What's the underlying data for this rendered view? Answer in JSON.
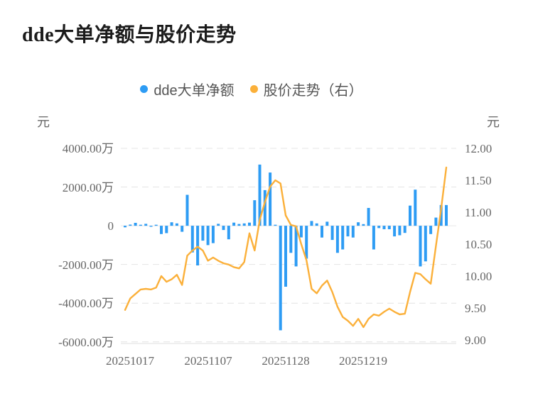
{
  "title": "dde大单净额与股价走势",
  "legend": {
    "series1": "dde大单净额",
    "series2": "股价走势（右）"
  },
  "left_axis": {
    "unit": "元",
    "ticks": [
      "4000.00万",
      "2000.00万",
      "0",
      "-2000.00万",
      "-4000.00万",
      "-6000.00万"
    ]
  },
  "right_axis": {
    "unit": "元",
    "ticks": [
      "12.00",
      "11.50",
      "11.00",
      "10.50",
      "10.00",
      "9.50",
      "9.00"
    ]
  },
  "x_axis": {
    "labels": [
      "20251017",
      "20251107",
      "20251128",
      "20251219"
    ],
    "label_bar_indices": [
      1,
      16,
      31,
      46
    ]
  },
  "colors": {
    "bar": "#2E9CF4",
    "line": "#FBB03A",
    "grid": "#E4E4E4",
    "zero_line": "#E7E7E7",
    "axis_line": "#EAEAEA",
    "tick_text": "#666666",
    "legend_text": "#555555",
    "title_text": "#1B1B1B"
  },
  "chart_data": {
    "type": "bar+line",
    "title": "dde大单净额与股价走势",
    "legend": [
      "dde大单净额",
      "股价走势（右）"
    ],
    "left_ylabel": "元",
    "right_ylabel": "元",
    "left_ylim_wan": [
      -6000,
      4000
    ],
    "right_ylim": [
      9.0,
      12.0
    ],
    "grid": "dashed-horizontal",
    "legend_position": "top-center",
    "visible_x_tick_labels": [
      "20251017",
      "20251107",
      "20251128",
      "20251219"
    ],
    "bar_series": {
      "name": "dde大单净额",
      "unit": "万元",
      "axis": "left",
      "values": [
        -80,
        60,
        150,
        40,
        100,
        -30,
        50,
        -430,
        -380,
        180,
        120,
        -310,
        1600,
        -1380,
        -2050,
        -770,
        -1000,
        -900,
        100,
        -220,
        -700,
        160,
        90,
        120,
        160,
        1320,
        3160,
        1840,
        2750,
        30,
        -5400,
        -3150,
        -1400,
        -2100,
        -600,
        -1700,
        245,
        120,
        -610,
        210,
        -735,
        -1400,
        -1225,
        -550,
        -610,
        180,
        85,
        920,
        -1225,
        -120,
        -180,
        -180,
        -550,
        -490,
        -370,
        1040,
        1865,
        -2100,
        -1840,
        -430,
        420,
        1070,
        1070
      ]
    },
    "line_series": {
      "name": "股价走势",
      "unit": "元",
      "axis": "right",
      "values": [
        9.47,
        9.65,
        9.72,
        9.79,
        9.8,
        9.79,
        9.82,
        10.0,
        9.91,
        9.95,
        10.02,
        9.86,
        10.32,
        10.4,
        10.46,
        10.4,
        10.24,
        10.29,
        10.24,
        10.2,
        10.18,
        10.14,
        10.12,
        10.22,
        10.67,
        10.4,
        10.88,
        11.16,
        11.4,
        11.5,
        11.45,
        10.95,
        10.8,
        10.78,
        10.5,
        10.25,
        9.8,
        9.73,
        9.85,
        9.93,
        9.75,
        9.52,
        9.36,
        9.3,
        9.22,
        9.33,
        9.2,
        9.33,
        9.4,
        9.38,
        9.44,
        9.49,
        9.44,
        9.4,
        9.41,
        9.75,
        10.05,
        10.03,
        9.95,
        9.88,
        10.47,
        11.05,
        11.7
      ]
    }
  }
}
